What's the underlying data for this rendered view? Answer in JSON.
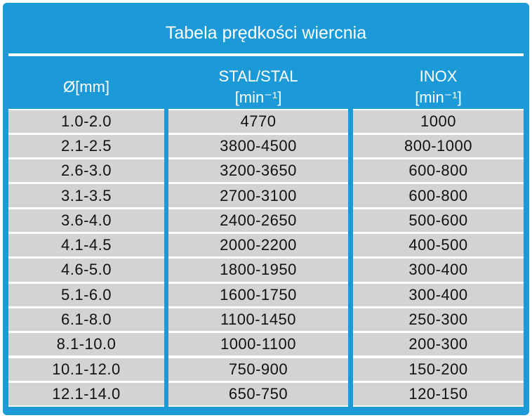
{
  "header": {
    "title": "Tabela prędkości wiercnia"
  },
  "table": {
    "columns": [
      [
        "Ø[mm]"
      ],
      [
        "STAL/STAL",
        "[min⁻¹]"
      ],
      [
        "INOX",
        "[min⁻¹]"
      ]
    ],
    "rows": [
      [
        "1.0-2.0",
        "4770",
        "1000"
      ],
      [
        "2.1-2.5",
        "3800-4500",
        "800-1000"
      ],
      [
        "2.6-3.0",
        "3200-3650",
        "600-800"
      ],
      [
        "3.1-3.5",
        "2700-3100",
        "600-800"
      ],
      [
        "3.6-4.0",
        "2400-2650",
        "500-600"
      ],
      [
        "4.1-4.5",
        "2000-2200",
        "400-500"
      ],
      [
        "4.6-5.0",
        "1800-1950",
        "300-400"
      ],
      [
        "5.1-6.0",
        "1600-1750",
        "300-400"
      ],
      [
        "6.1-8.0",
        "1100-1450",
        "250-300"
      ],
      [
        "8.1-10.0",
        "1000-1100",
        "200-300"
      ],
      [
        "10.1-12.0",
        "750-900",
        "150-200"
      ],
      [
        "12.1-14.0",
        "650-750",
        "120-150"
      ]
    ]
  }
}
